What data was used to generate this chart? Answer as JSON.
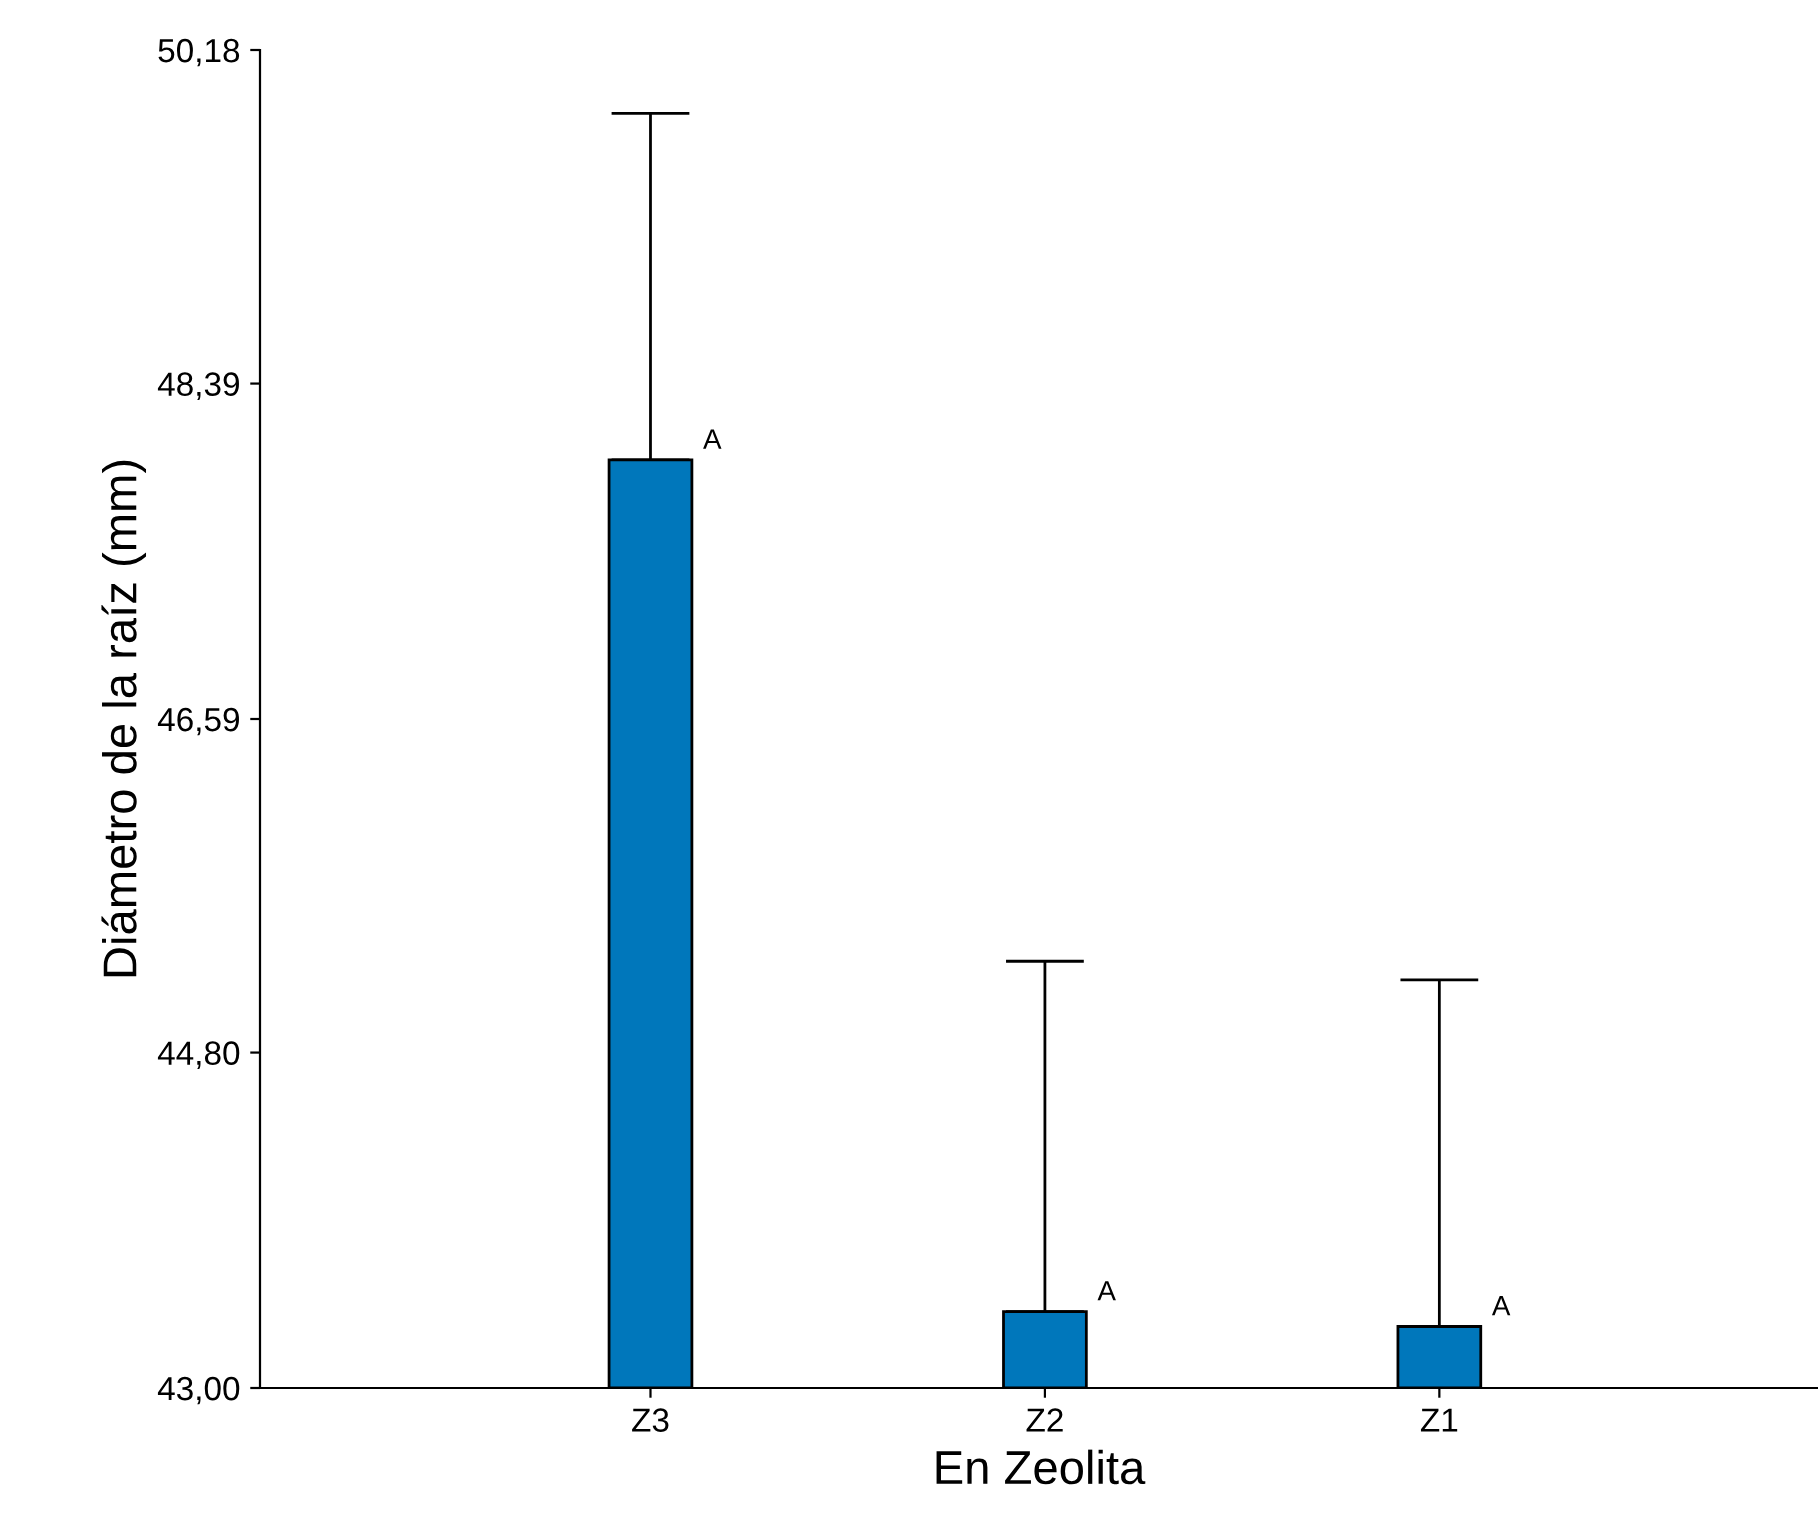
{
  "chart_data": {
    "type": "bar",
    "xlabel": "En Zeolita",
    "ylabel": "Diámetro de la raíz (mm)",
    "categories": [
      "Z3",
      "Z2",
      "Z1"
    ],
    "values": [
      47.98,
      43.41,
      43.33
    ],
    "errors": [
      [
        47.98,
        49.84
      ],
      [
        43.41,
        45.29
      ],
      [
        43.33,
        45.19
      ]
    ],
    "color": "#0077bb",
    "ylim": [
      43.0,
      50.18
    ],
    "yticks": [
      {
        "value": 43.0,
        "label": "43,00"
      },
      {
        "value": 44.8,
        "label": "44,80"
      },
      {
        "value": 46.59,
        "label": "46,59"
      },
      {
        "value": 48.39,
        "label": "48,39"
      },
      {
        "value": 50.18,
        "label": "50,18"
      }
    ],
    "annotations": [
      {
        "text": "A",
        "x": "Z3",
        "y": 47.98
      },
      {
        "text": "A",
        "x": "Z2",
        "y": 43.41
      },
      {
        "text": "A",
        "x": "Z1",
        "y": 43.33
      }
    ],
    "grid": false,
    "legend": false
  }
}
